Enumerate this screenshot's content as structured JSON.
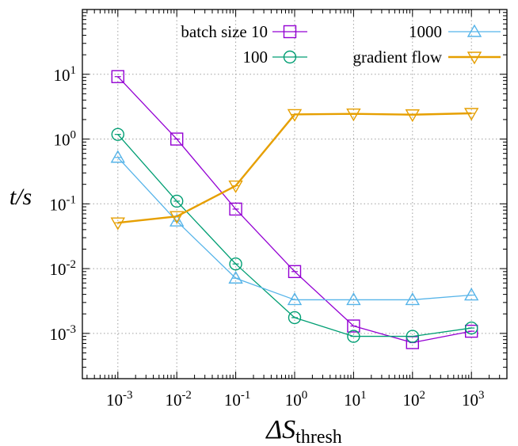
{
  "chart_data": {
    "type": "line",
    "x": [
      0.001,
      0.01,
      0.1,
      1,
      10,
      100,
      1000
    ],
    "x_tick_exponents": [
      "-3",
      "-2",
      "-1",
      "0",
      "1",
      "2",
      "3"
    ],
    "y_tick_exponents": [
      "-3",
      "-2",
      "-1",
      "0",
      "1"
    ],
    "tick_base": "10",
    "xscale": "log",
    "yscale": "log",
    "xlim": [
      0.00025,
      4000
    ],
    "ylim": [
      0.0002,
      100
    ],
    "grid": true,
    "ylabel": "t/s",
    "xlabel_symbol": "ΔS",
    "xlabel_subscript": "thresh",
    "series": [
      {
        "name": "batch size 10",
        "color": "#9400d3",
        "marker": "square",
        "values": [
          9.2,
          1.0,
          0.083,
          0.009,
          0.0013,
          0.00072,
          0.00108
        ]
      },
      {
        "name": "100",
        "color": "#009e73",
        "marker": "circle",
        "values": [
          1.18,
          0.11,
          0.0118,
          0.00175,
          0.0009,
          0.0009,
          0.00121
        ]
      },
      {
        "name": "1000",
        "color": "#56b4e9",
        "marker": "triangle-up",
        "values": [
          0.52,
          0.054,
          0.0071,
          0.0033,
          0.0033,
          0.0033,
          0.0039
        ]
      },
      {
        "name": "gradient flow",
        "color": "#e69f00",
        "marker": "triangle-down",
        "values": [
          0.051,
          0.064,
          0.19,
          2.4,
          2.45,
          2.38,
          2.5
        ]
      }
    ]
  }
}
